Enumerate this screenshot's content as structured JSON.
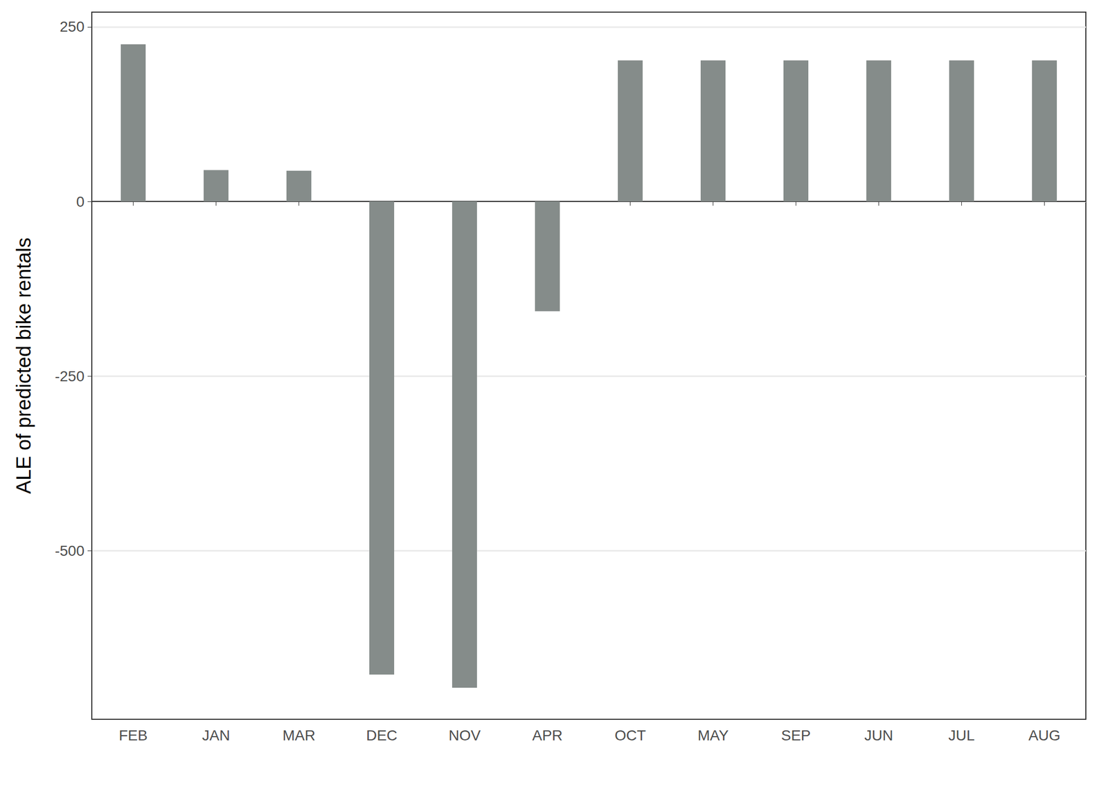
{
  "chart_data": {
    "type": "bar",
    "y_label": "ALE of predicted bike rentals",
    "categories": [
      "FEB",
      "JAN",
      "MAR",
      "DEC",
      "NOV",
      "APR",
      "OCT",
      "MAY",
      "SEP",
      "JUN",
      "JUL",
      "AUG"
    ],
    "values": [
      225,
      45,
      44,
      -677,
      -696,
      -157,
      202,
      202,
      202,
      202,
      202,
      202
    ],
    "color": "#858c8a",
    "ylim": [
      -741,
      271
    ],
    "yticks": [
      -500,
      -250,
      0,
      250
    ],
    "grid": true
  }
}
